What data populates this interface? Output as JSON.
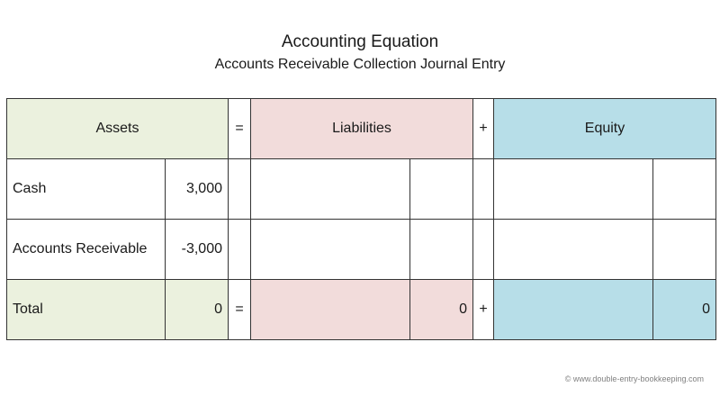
{
  "title": "Accounting Equation",
  "subtitle": "Accounts Receivable Collection Journal Entry",
  "header": {
    "assets": "Assets",
    "equals": "=",
    "liabilities": "Liabilities",
    "plus": "+",
    "equity": "Equity"
  },
  "rows": [
    {
      "label": "Cash",
      "assets_amount": "3,000"
    },
    {
      "label": "Accounts Receivable",
      "assets_amount": "-3,000"
    }
  ],
  "total": {
    "label": "Total",
    "assets_amount": "0",
    "equals": "=",
    "liabilities_amount": "0",
    "plus": "+",
    "equity_amount": "0"
  },
  "colors": {
    "assets": "#ebf1de",
    "liabilities": "#f2dcdb",
    "equity": "#b7dee8"
  },
  "footer": "© www.double-entry-bookkeeping.com"
}
